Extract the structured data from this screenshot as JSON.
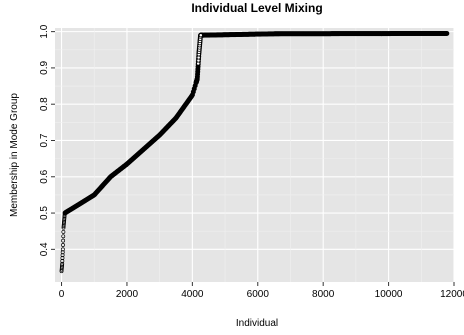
{
  "chart_data": {
    "type": "scatter",
    "title": "Individual Level Mixing",
    "xlabel": "Individual",
    "ylabel": "Membership in Mode Group",
    "xlim": [
      -200,
      12000
    ],
    "ylim": [
      0.31,
      1.01
    ],
    "x_ticks": [
      0,
      2000,
      4000,
      6000,
      8000,
      10000,
      12000
    ],
    "x_tick_labels": [
      "0",
      "2000",
      "4000",
      "6000",
      "8000",
      "10000",
      "12000"
    ],
    "y_ticks": [
      0.4,
      0.5,
      0.6,
      0.7,
      0.8,
      0.9,
      1.0
    ],
    "y_tick_labels": [
      "0.4",
      "0.5",
      "0.6",
      "0.7",
      "0.8",
      "0.9",
      "1.0"
    ],
    "grid": true,
    "background": "#e5e5e5",
    "point_color": "#000000",
    "curve_points": [
      {
        "x": 0,
        "y": 0.34
      },
      {
        "x": 20,
        "y": 0.36
      },
      {
        "x": 40,
        "y": 0.4
      },
      {
        "x": 60,
        "y": 0.46
      },
      {
        "x": 100,
        "y": 0.5
      },
      {
        "x": 500,
        "y": 0.522
      },
      {
        "x": 1000,
        "y": 0.55
      },
      {
        "x": 1500,
        "y": 0.6
      },
      {
        "x": 2000,
        "y": 0.635
      },
      {
        "x": 2500,
        "y": 0.675
      },
      {
        "x": 3000,
        "y": 0.715
      },
      {
        "x": 3500,
        "y": 0.762
      },
      {
        "x": 4000,
        "y": 0.825
      },
      {
        "x": 4150,
        "y": 0.87
      },
      {
        "x": 4200,
        "y": 0.94
      },
      {
        "x": 4250,
        "y": 0.99
      },
      {
        "x": 6500,
        "y": 0.994
      },
      {
        "x": 11800,
        "y": 0.995
      }
    ]
  }
}
